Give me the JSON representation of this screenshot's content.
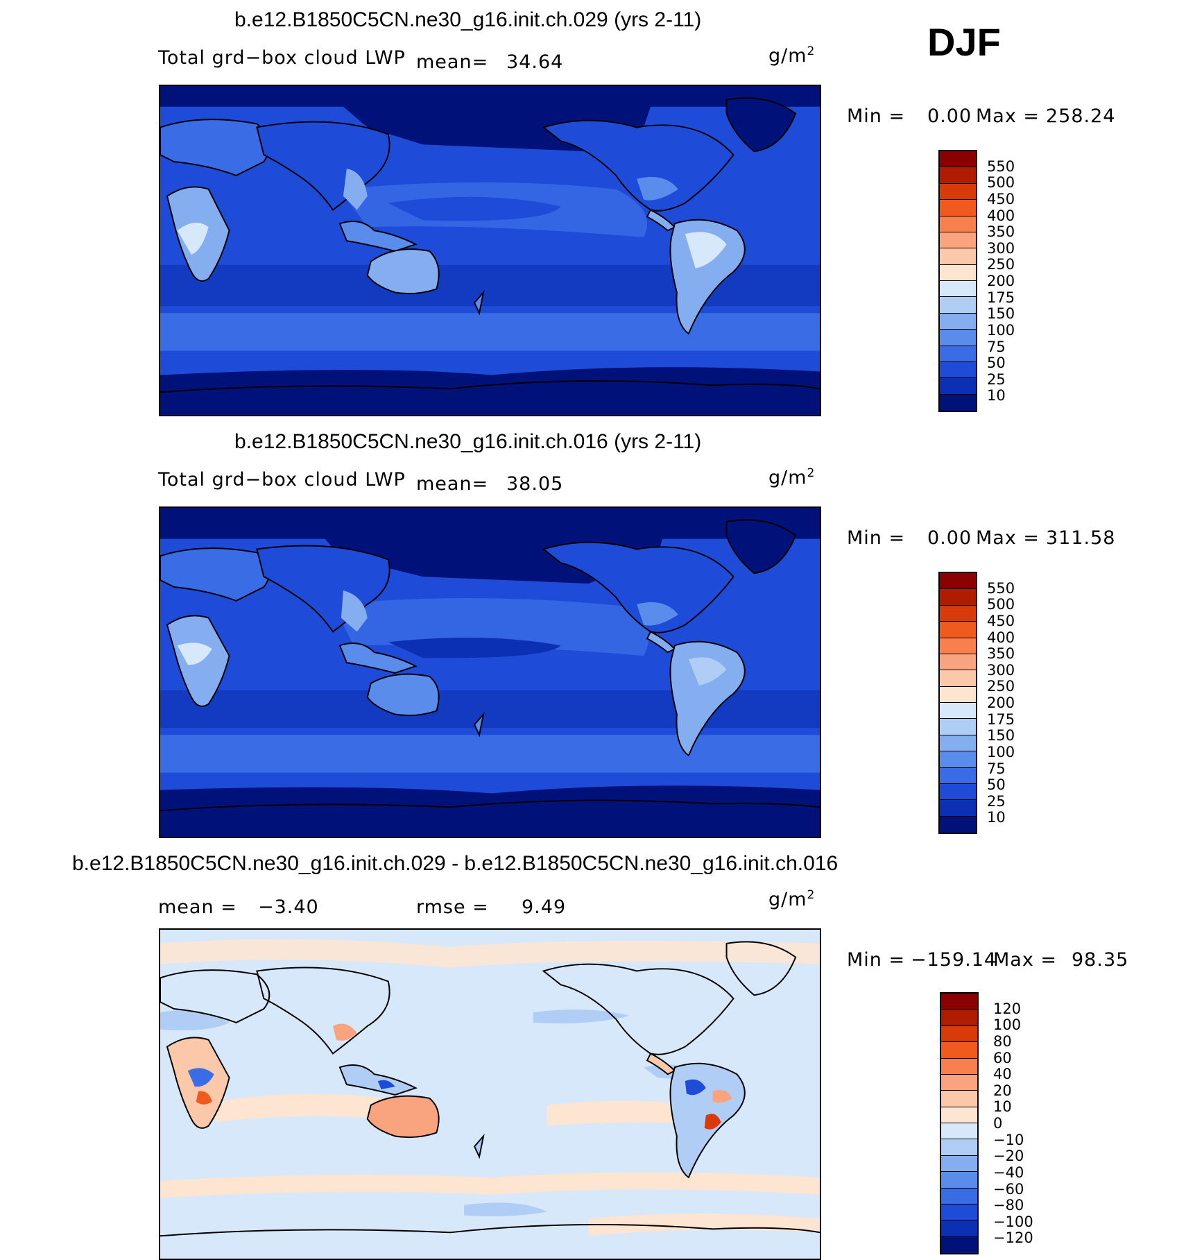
{
  "season": "DJF",
  "units_base": "g/m",
  "units_exp": "2",
  "panels": [
    {
      "title": "b.e12.B1850C5CN.ne30_g16.init.ch.029 (yrs 2-11)",
      "variable": "Total grd−box cloud LWP",
      "mean_label": "mean=",
      "mean_value": "34.64",
      "min_label": "Min =",
      "min_value": "0.00",
      "max_label": "Max =",
      "max_value": "258.24"
    },
    {
      "title": "b.e12.B1850C5CN.ne30_g16.init.ch.016 (yrs 2-11)",
      "variable": "Total grd−box cloud LWP",
      "mean_label": "mean=",
      "mean_value": "38.05",
      "min_label": "Min =",
      "min_value": "0.00",
      "max_label": "Max =",
      "max_value": "311.58"
    },
    {
      "title": "b.e12.B1850C5CN.ne30_g16.init.ch.029 - b.e12.B1850C5CN.ne30_g16.init.ch.016",
      "mean_label": "mean =",
      "mean_value": "−3.40",
      "rmse_label": "rmse =",
      "rmse_value": "9.49",
      "min_label": "Min =",
      "min_value": "−159.14",
      "max_label": "Max =",
      "max_value": "98.35"
    }
  ],
  "colorbar_levels": [
    "550",
    "500",
    "450",
    "400",
    "350",
    "300",
    "250",
    "200",
    "175",
    "150",
    "100",
    "75",
    "50",
    "25",
    "10"
  ],
  "colorbar_colors": [
    "#8b0000",
    "#b01c00",
    "#d83a0a",
    "#f05a1e",
    "#f7804e",
    "#f9a47e",
    "#fcc8aa",
    "#fde5d2",
    "#d6e8fa",
    "#b0cdf6",
    "#84aef0",
    "#5a8cec",
    "#3a6ce6",
    "#1e4cd8",
    "#0c30b4",
    "#00127a"
  ],
  "diff_colorbar_levels": [
    "120",
    "100",
    "80",
    "60",
    "40",
    "20",
    "10",
    "0",
    "−10",
    "−20",
    "−40",
    "−60",
    "−80",
    "−100",
    "−120"
  ],
  "diff_colorbar_colors": [
    "#8b0000",
    "#b01c00",
    "#d83a0a",
    "#f05a1e",
    "#f7804e",
    "#f9a47e",
    "#fcc8aa",
    "#fde5d2",
    "#d6e8fa",
    "#b0cdf6",
    "#84aef0",
    "#5a8cec",
    "#3a6ce6",
    "#1e4cd8",
    "#0c30b4",
    "#00127a"
  ]
}
